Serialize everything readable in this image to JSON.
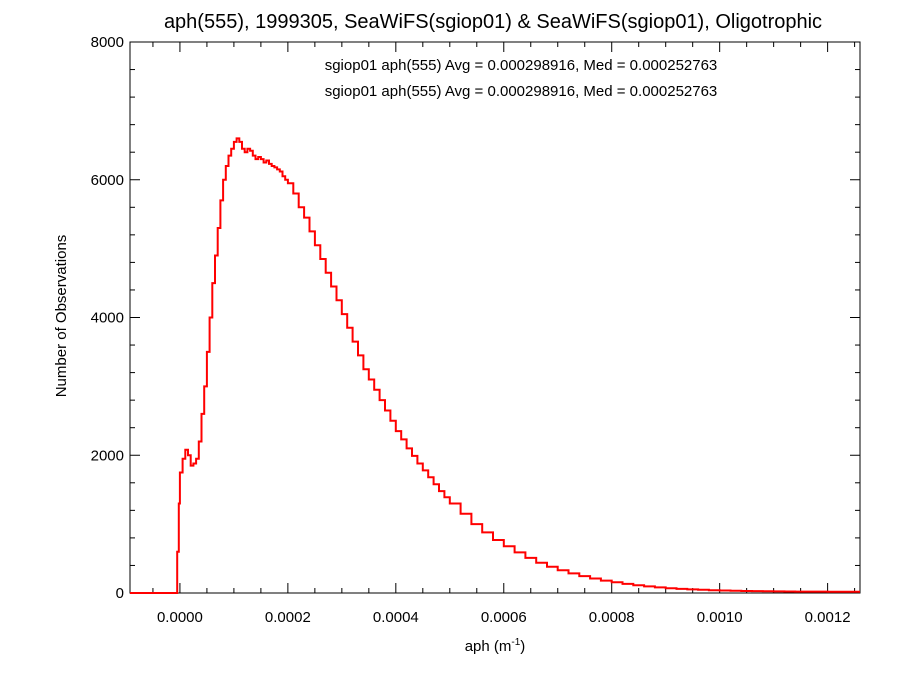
{
  "chart_data": {
    "type": "line",
    "title": "aph(555), 1999305, SeaWiFS(sgiop01) & SeaWiFS(sgiop01), Oligotrophic",
    "xlabel": "aph (m",
    "xlabel_sup": "-1",
    "xlabel_close": ")",
    "ylabel": "Number of Observations",
    "xlim": [
      -9.25e-05,
      0.00126
    ],
    "ylim": [
      0,
      8000
    ],
    "x_ticks": [
      0.0,
      0.0002,
      0.0004,
      0.0006,
      0.0008,
      0.001,
      0.0012
    ],
    "x_tick_labels": [
      "0.0000",
      "0.0002",
      "0.0004",
      "0.0006",
      "0.0008",
      "0.0010",
      "0.0012"
    ],
    "y_ticks": [
      0,
      2000,
      4000,
      6000,
      8000
    ],
    "y_tick_labels": [
      "0",
      "2000",
      "4000",
      "6000",
      "8000"
    ],
    "grid": false,
    "annotations": [
      {
        "text": "sgiop01 aph(555) Avg = 0.000298916, Med = 0.000252763",
        "color": "#000000"
      },
      {
        "text": "sgiop01 aph(555) Avg = 0.000298916, Med = 0.000252763",
        "color": "#ff0000"
      }
    ],
    "series": [
      {
        "color": "#ff0000",
        "x": [
          -9.25e-05,
          -7e-05,
          -5e-05,
          -3e-05,
          -1e-05,
          -5e-06,
          -2e-06,
          0.0,
          5e-06,
          1e-05,
          1.5e-05,
          2e-05,
          2.5e-05,
          3e-05,
          3.5e-05,
          4e-05,
          4.5e-05,
          5e-05,
          5.5e-05,
          6e-05,
          6.5e-05,
          7e-05,
          7.5e-05,
          8e-05,
          8.5e-05,
          9e-05,
          9.5e-05,
          0.0001,
          0.000105,
          0.00011,
          0.000115,
          0.00012,
          0.000125,
          0.00013,
          0.000135,
          0.00014,
          0.000145,
          0.00015,
          0.000155,
          0.00016,
          0.000165,
          0.00017,
          0.000175,
          0.00018,
          0.000185,
          0.00019,
          0.000195,
          0.0002,
          0.00021,
          0.00022,
          0.00023,
          0.00024,
          0.00025,
          0.00026,
          0.00027,
          0.00028,
          0.00029,
          0.0003,
          0.00031,
          0.00032,
          0.00033,
          0.00034,
          0.00035,
          0.00036,
          0.00037,
          0.00038,
          0.00039,
          0.0004,
          0.00041,
          0.00042,
          0.00043,
          0.00044,
          0.00045,
          0.00046,
          0.00047,
          0.00048,
          0.00049,
          0.0005,
          0.00052,
          0.00054,
          0.00056,
          0.00058,
          0.0006,
          0.00062,
          0.00064,
          0.00066,
          0.00068,
          0.0007,
          0.00072,
          0.00074,
          0.00076,
          0.00078,
          0.0008,
          0.00082,
          0.00084,
          0.00086,
          0.00088,
          0.0009,
          0.00092,
          0.00094,
          0.00096,
          0.00098,
          0.001,
          0.00102,
          0.00104,
          0.00106,
          0.00108,
          0.0011,
          0.00112,
          0.00114,
          0.00116,
          0.00118,
          0.0012,
          0.00122,
          0.00124,
          0.00126
        ],
        "values": [
          0,
          0,
          0,
          0,
          0,
          600,
          1300,
          1750,
          1950,
          2080,
          2000,
          1850,
          1880,
          1950,
          2200,
          2600,
          3000,
          3500,
          4000,
          4500,
          4900,
          5300,
          5700,
          6000,
          6200,
          6350,
          6450,
          6550,
          6600,
          6550,
          6450,
          6400,
          6450,
          6420,
          6350,
          6300,
          6330,
          6300,
          6250,
          6280,
          6230,
          6200,
          6180,
          6150,
          6120,
          6050,
          6000,
          5950,
          5800,
          5600,
          5450,
          5250,
          5050,
          4850,
          4650,
          4450,
          4250,
          4050,
          3850,
          3650,
          3450,
          3250,
          3100,
          2950,
          2800,
          2650,
          2500,
          2350,
          2230,
          2100,
          1990,
          1880,
          1780,
          1680,
          1580,
          1480,
          1390,
          1300,
          1150,
          1000,
          880,
          770,
          680,
          590,
          510,
          440,
          380,
          330,
          285,
          245,
          210,
          180,
          155,
          132,
          112,
          96,
          82,
          70,
          60,
          52,
          46,
          40,
          36,
          32,
          29,
          27,
          25,
          23,
          22,
          21,
          20,
          20,
          19,
          18,
          17,
          17
        ]
      }
    ]
  }
}
